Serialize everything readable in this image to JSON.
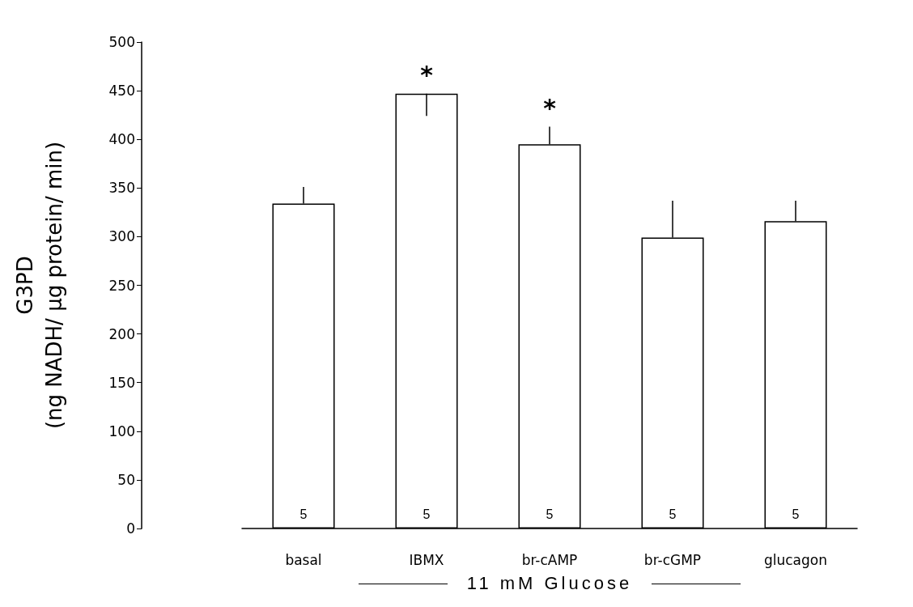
{
  "chart_data": {
    "type": "bar",
    "ylabel": "G3PD\n(ng NADH/ μg protein/ min)",
    "xlabel": "11 mM Glucose",
    "categories": [
      "basal",
      "IBMX",
      "br-cAMP",
      "br-cGMP",
      "glucagon"
    ],
    "values": [
      334,
      447,
      395,
      299,
      316
    ],
    "errors": [
      [
        334,
        351
      ],
      [
        424,
        447
      ],
      [
        395,
        413
      ],
      [
        299,
        337
      ],
      [
        316,
        337
      ]
    ],
    "color": "#ffffff",
    "ylim": [
      0,
      500
    ],
    "yticks": [
      0,
      50,
      100,
      150,
      200,
      250,
      300,
      350,
      400,
      450,
      500
    ],
    "annotations": [
      {
        "text": "*",
        "x": "IBMX",
        "y": 447
      },
      {
        "text": "*",
        "x": "br-cAMP",
        "y": 413
      },
      {
        "text": "5",
        "x": "basal",
        "y": 0
      },
      {
        "text": "5",
        "x": "IBMX",
        "y": 0
      },
      {
        "text": "5",
        "x": "br-cAMP",
        "y": 0
      },
      {
        "text": "5",
        "x": "br-cGMP",
        "y": 0
      },
      {
        "text": "5",
        "x": "glucagon",
        "y": 0
      }
    ],
    "grid": false
  }
}
